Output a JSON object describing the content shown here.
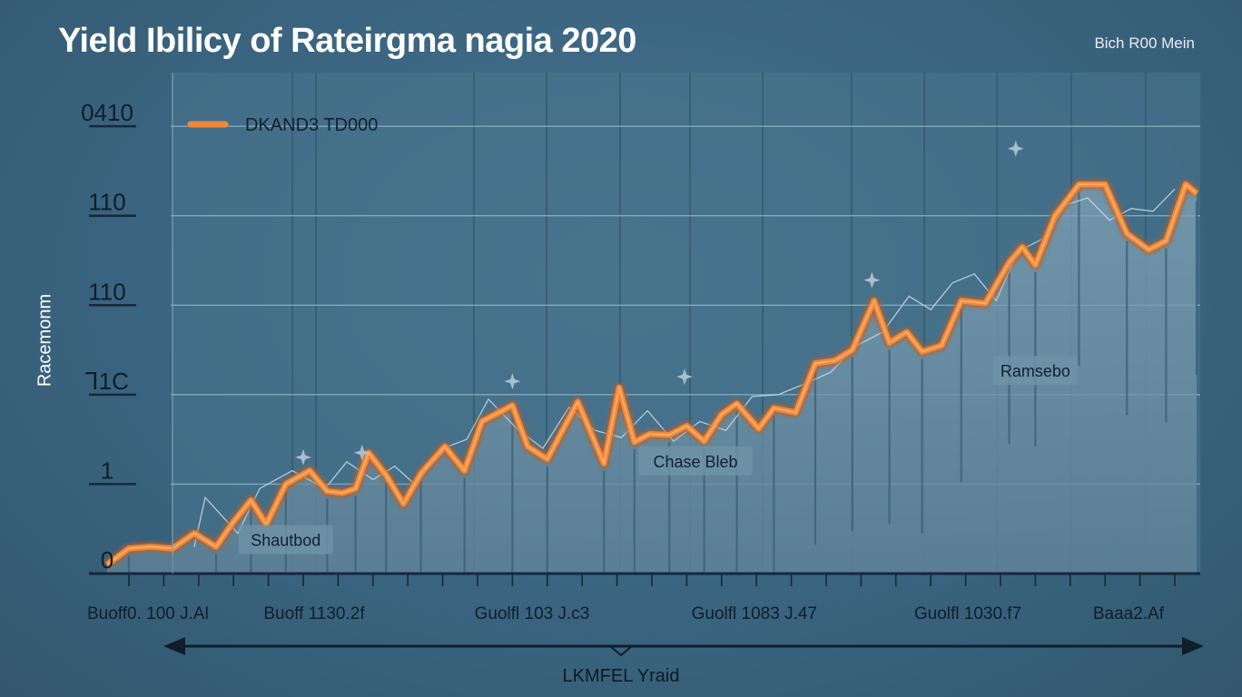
{
  "chart_data": {
    "type": "line",
    "title": "Yield Ibilicy of Rateirgma nagia 2020",
    "corner_label": "Bich R00 Mein",
    "ylabel": "Racemonm",
    "xlabel": "LKMFEL Yraid",
    "legend": {
      "label": "DKAND3 TD000",
      "placement": "top-left",
      "color": "#f0883a"
    },
    "y_ticks": [
      "0",
      "1",
      "Ꞁ1C",
      "110",
      "110",
      "0410"
    ],
    "y_tick_values": [
      0,
      1,
      2,
      3,
      4,
      5
    ],
    "ylim": [
      0,
      5.6
    ],
    "x_ticks": [
      "Buoff0. 100 J.Al",
      "Buoff 1130.2f",
      "Guolfl 103 J.c3",
      "Guolfl 1083 J.47",
      "Guolfl 1030.f7",
      "Baaa2.Af"
    ],
    "x_tick_positions": [
      0,
      9.5,
      19.5,
      29.7,
      39.5,
      48.5
    ],
    "xlim": [
      0,
      50
    ],
    "annotations": [
      {
        "text": "Shautbod",
        "x": 8.2,
        "y": 0.36
      },
      {
        "text": "Chase Bleb",
        "x": 27.0,
        "y": 1.24
      },
      {
        "text": "Ramsebo",
        "x": 42.6,
        "y": 2.25
      }
    ],
    "series": [
      {
        "name": "DKAND3 TD000",
        "color": "#f0883a",
        "x": [
          0,
          1,
          2,
          3,
          4,
          5,
          5.8,
          6.6,
          7.3,
          8.2,
          9.3,
          10.1,
          10.8,
          11.4,
          12,
          12.8,
          13.6,
          14.4,
          15.5,
          16.4,
          17.2,
          18.6,
          19.3,
          20.2,
          21.6,
          22.8,
          23.5,
          24.2,
          24.9,
          25.8,
          26.6,
          27.4,
          28.2,
          28.9,
          29.9,
          30.6,
          31.6,
          32.5,
          33.4,
          34.2,
          35.2,
          35.9,
          36.7,
          37.4,
          38.3,
          39.2,
          40.3,
          41.4,
          42.0,
          42.6,
          43.5,
          44.6,
          45.8,
          46.8,
          47.8,
          48.6,
          49.5,
          50
        ],
        "y": [
          0.1,
          0.28,
          0.3,
          0.28,
          0.45,
          0.3,
          0.58,
          0.82,
          0.55,
          1.0,
          1.15,
          0.92,
          0.9,
          0.95,
          1.35,
          1.1,
          0.78,
          1.12,
          1.42,
          1.15,
          1.7,
          1.88,
          1.42,
          1.28,
          1.92,
          1.23,
          2.08,
          1.47,
          1.56,
          1.55,
          1.65,
          1.48,
          1.78,
          1.9,
          1.62,
          1.85,
          1.8,
          2.35,
          2.38,
          2.5,
          3.05,
          2.58,
          2.7,
          2.48,
          2.55,
          3.05,
          3.02,
          3.48,
          3.65,
          3.45,
          4.0,
          4.35,
          4.35,
          3.8,
          3.62,
          3.72,
          4.35,
          4.25
        ]
      },
      {
        "name": "reference",
        "color": "#c9dbe6",
        "x": [
          4,
          4.5,
          6,
          7,
          8.5,
          10,
          11,
          12.2,
          13.2,
          14.2,
          15.2,
          16.5,
          17.5,
          18.8,
          20,
          21.2,
          22.4,
          23.6,
          24.8,
          26,
          27.2,
          28.4,
          29.6,
          30.8,
          32,
          33.2,
          34.4,
          35.6,
          36.8,
          37.8,
          38.8,
          39.8,
          40.8,
          41.8,
          43,
          44,
          45,
          46,
          47,
          48,
          49
        ],
        "y": [
          0.3,
          0.85,
          0.45,
          0.95,
          1.15,
          0.95,
          1.25,
          1.05,
          1.2,
          0.98,
          1.38,
          1.5,
          1.95,
          1.62,
          1.4,
          1.86,
          1.6,
          1.52,
          1.82,
          1.48,
          1.7,
          1.6,
          1.98,
          2.0,
          2.12,
          2.25,
          2.55,
          2.7,
          3.1,
          2.95,
          3.25,
          3.35,
          3.05,
          3.6,
          3.75,
          4.12,
          4.2,
          3.95,
          4.08,
          4.05,
          4.3
        ]
      }
    ]
  }
}
